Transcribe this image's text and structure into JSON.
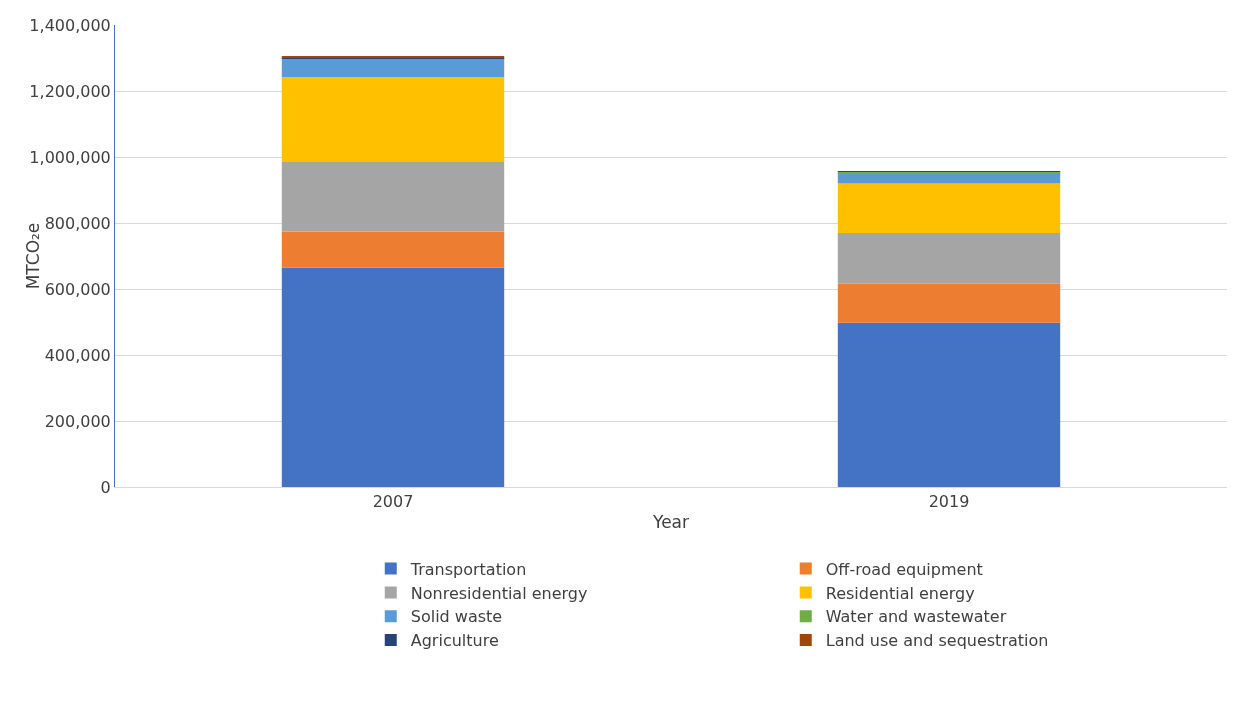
{
  "chart_data": {
    "type": "bar",
    "stacked": true,
    "xlabel": "Year",
    "ylabel": "MTCO₂e",
    "categories": [
      "2007",
      "2019"
    ],
    "series": [
      {
        "name": "Transportation",
        "color": "#4472c4",
        "values": [
          665000,
          498000
        ]
      },
      {
        "name": "Off-road equipment",
        "color": "#ed7d31",
        "values": [
          109000,
          118000
        ]
      },
      {
        "name": "Nonresidential energy",
        "color": "#a5a5a5",
        "values": [
          211000,
          154000
        ]
      },
      {
        "name": "Residential energy",
        "color": "#ffc000",
        "values": [
          257000,
          150000
        ]
      },
      {
        "name": "Solid waste",
        "color": "#5b9bd5",
        "values": [
          53000,
          31000
        ]
      },
      {
        "name": "Water and wastewater",
        "color": "#70ad47",
        "values": [
          4000,
          5000
        ]
      },
      {
        "name": "Agriculture",
        "color": "#264478",
        "values": [
          1000,
          1000
        ]
      },
      {
        "name": "Land use and sequestration",
        "color": "#9e480e",
        "values": [
          4000,
          null
        ]
      }
    ],
    "ylim": [
      0,
      1400000
    ],
    "yticks": [
      {
        "value": 0,
        "label": "0"
      },
      {
        "value": 200000,
        "label": "200,000"
      },
      {
        "value": 400000,
        "label": "400,000"
      },
      {
        "value": 600000,
        "label": "600,000"
      },
      {
        "value": 800000,
        "label": "800,000"
      },
      {
        "value": 1000000,
        "label": "1,000,000"
      },
      {
        "value": 1200000,
        "label": "1,200,000"
      },
      {
        "value": 1400000,
        "label": "1,400,000"
      }
    ],
    "grid": "y",
    "legend": "bottom"
  }
}
